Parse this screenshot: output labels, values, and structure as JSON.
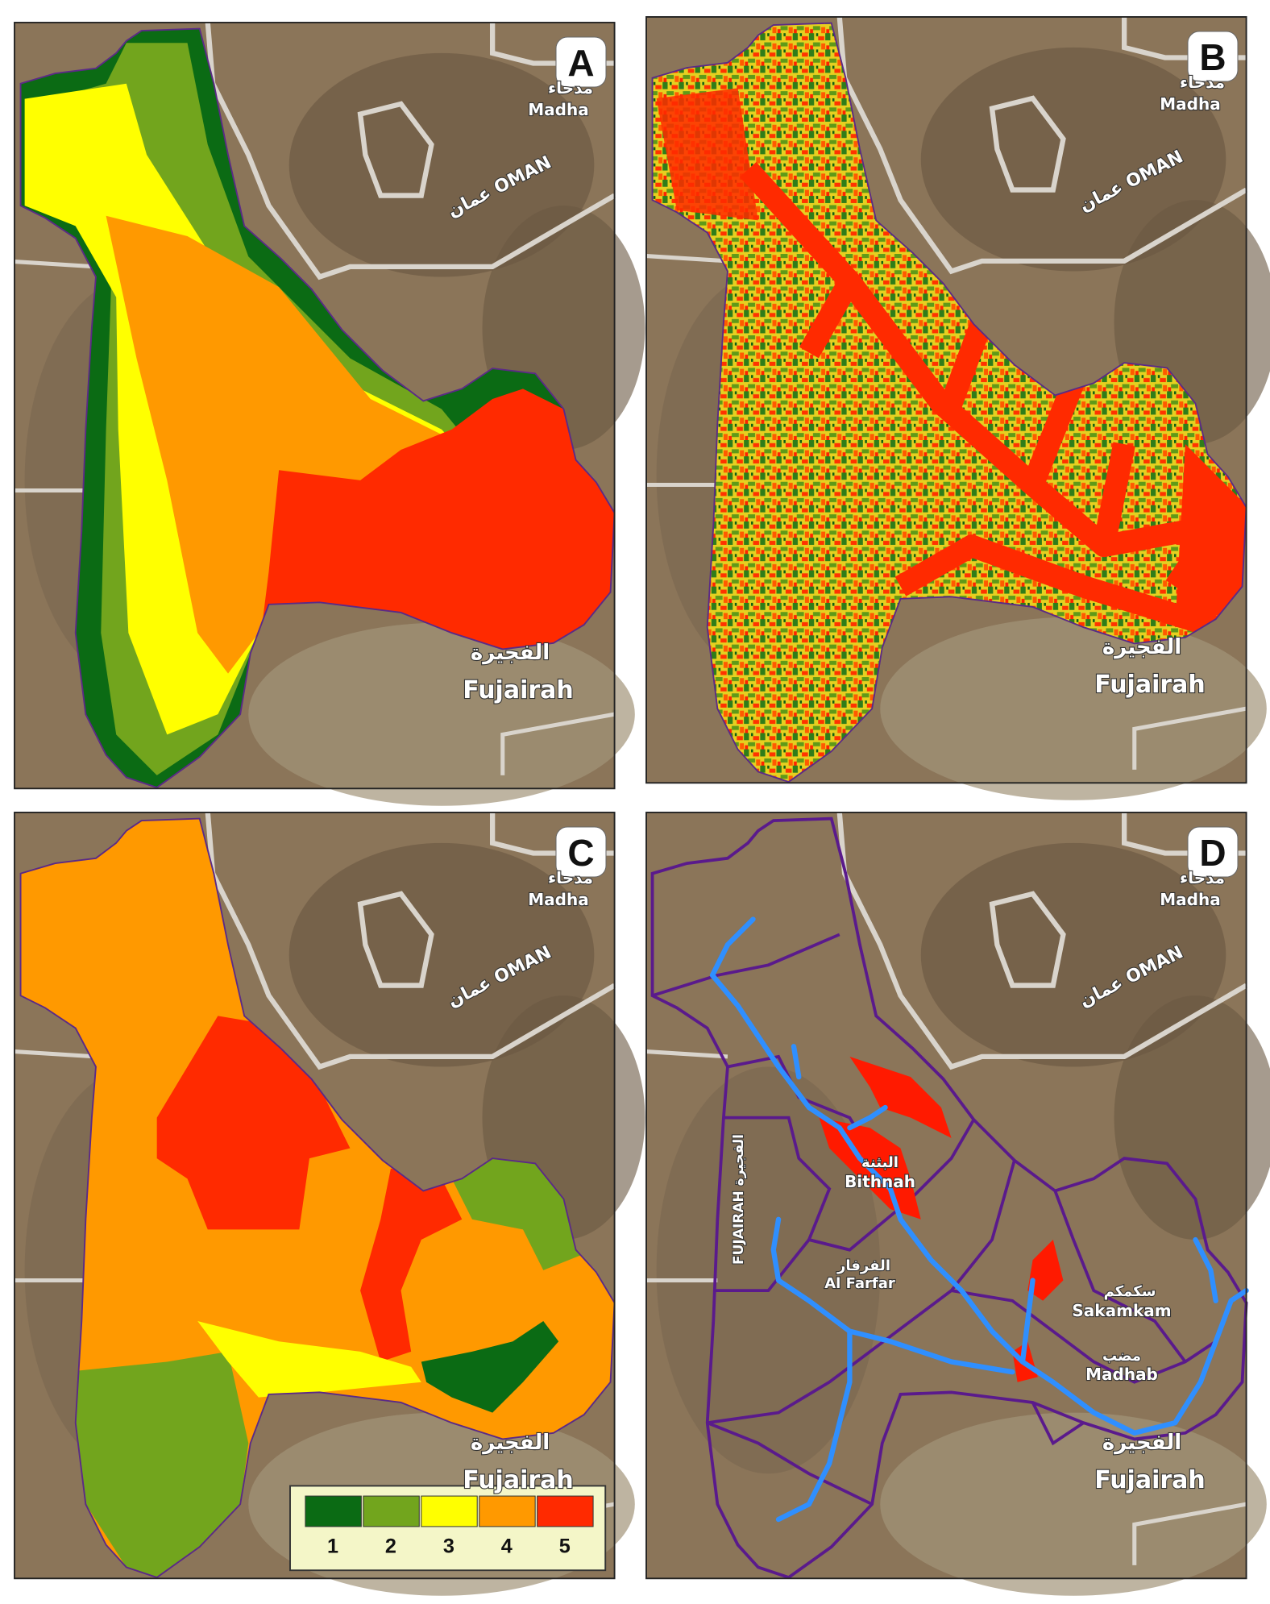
{
  "panels": [
    {
      "label": "A"
    },
    {
      "label": "B"
    },
    {
      "label": "C"
    },
    {
      "label": "D"
    }
  ],
  "places": {
    "madha_ar": "مدحاء",
    "madha": "Madha",
    "oman": "عمان OMAN",
    "fujairah_ar": "الفجيرة",
    "fujairah": "Fujairah"
  },
  "panel_d_places": {
    "fujairah_vertical": "FUJAIRAH الفجيرة",
    "bithnah_ar": "البثنة",
    "bithnah": "Bithnah",
    "farfar_ar": "الفرفار",
    "farfar": "Al Farfar",
    "sakamkam_ar": "سكمكم",
    "sakamkam": "Sakamkam",
    "madhab_ar": "مضب",
    "madhab": "Madhab"
  },
  "legend": {
    "classes": [
      {
        "label": "1",
        "color": "#0b6b14"
      },
      {
        "label": "2",
        "color": "#72a51d"
      },
      {
        "label": "3",
        "color": "#ffff00"
      },
      {
        "label": "4",
        "color": "#ff9900"
      },
      {
        "label": "5",
        "color": "#ff2a00"
      }
    ]
  }
}
